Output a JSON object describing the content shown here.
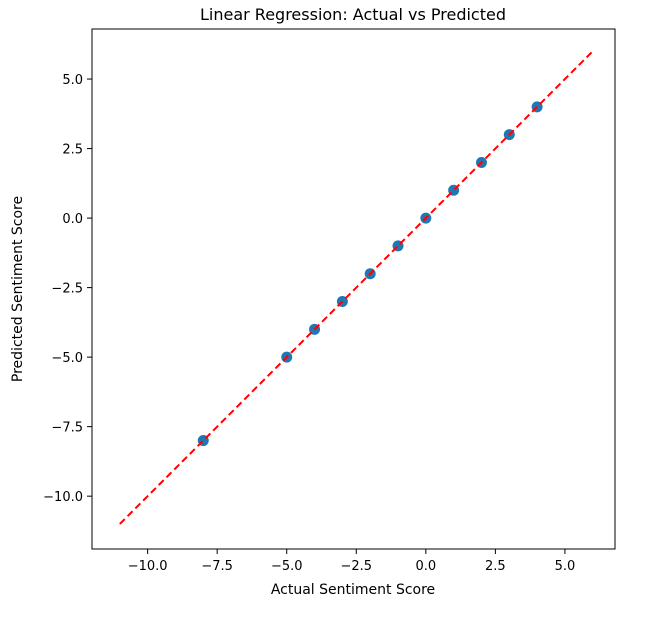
{
  "chart_data": {
    "type": "scatter",
    "title": "Linear Regression: Actual vs Predicted",
    "xlabel": "Actual Sentiment Score",
    "ylabel": "Predicted Sentiment Score",
    "xlim": [
      -12.0,
      6.8
    ],
    "ylim": [
      -11.9,
      6.8
    ],
    "xticks": [
      -10.0,
      -7.5,
      -5.0,
      -2.5,
      0.0,
      2.5,
      5.0
    ],
    "xtick_labels": [
      "−10.0",
      "−7.5",
      "−5.0",
      "−2.5",
      "0.0",
      "2.5",
      "5.0"
    ],
    "yticks": [
      5.0,
      2.5,
      0.0,
      -2.5,
      -5.0,
      -7.5,
      -10.0
    ],
    "ytick_labels": [
      "5.0",
      "2.5",
      "0.0",
      "−2.5",
      "−5.0",
      "−7.5",
      "−10.0"
    ],
    "grid": false,
    "series": [
      {
        "kind": "scatter",
        "color": "#1f77b4",
        "points": [
          {
            "x": -8,
            "y": -8
          },
          {
            "x": -5,
            "y": -5
          },
          {
            "x": -4,
            "y": -4
          },
          {
            "x": -3,
            "y": -3
          },
          {
            "x": -2,
            "y": -2
          },
          {
            "x": -1,
            "y": -1
          },
          {
            "x": 0,
            "y": 0
          },
          {
            "x": 1,
            "y": 1
          },
          {
            "x": 2,
            "y": 2
          },
          {
            "x": 3,
            "y": 3
          },
          {
            "x": 4,
            "y": 4
          }
        ]
      },
      {
        "kind": "line",
        "style": "dashed",
        "color": "#ff0000",
        "x": [
          -11,
          6
        ],
        "y": [
          -11,
          6
        ]
      }
    ]
  }
}
